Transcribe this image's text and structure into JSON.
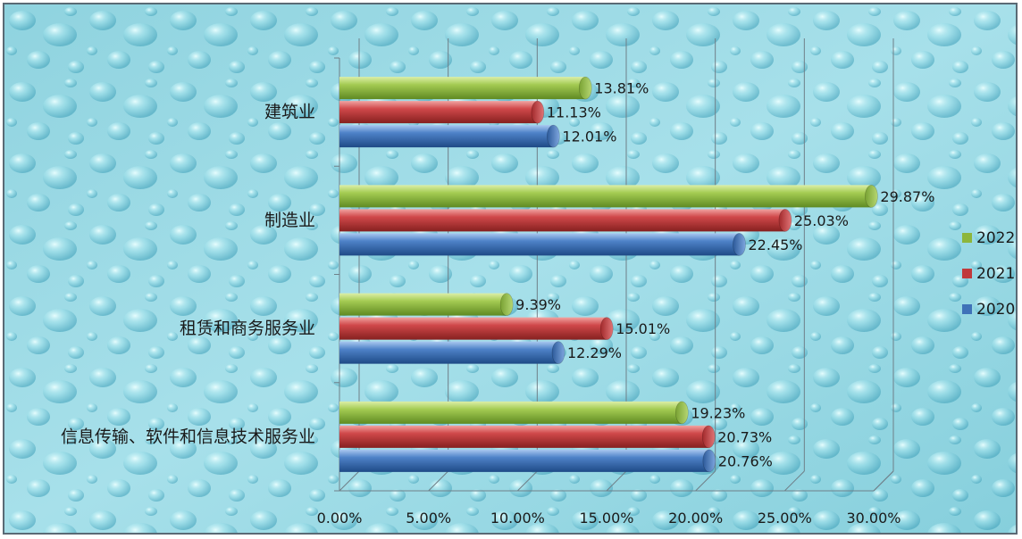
{
  "chart_data": {
    "type": "bar",
    "orientation": "horizontal",
    "categories": [
      "建筑业",
      "制造业",
      "租赁和商务服务业",
      "信息传输、软件和信息技术服务业"
    ],
    "series": [
      {
        "name": "2022",
        "values": [
          13.81,
          29.87,
          9.39,
          19.23
        ],
        "labels": [
          "13.81%",
          "29.87%",
          "9.39%",
          "19.23%"
        ]
      },
      {
        "name": "2021",
        "values": [
          11.13,
          25.03,
          15.01,
          20.73
        ],
        "labels": [
          "11.13%",
          "25.03%",
          "15.01%",
          "20.73%"
        ]
      },
      {
        "name": "2020",
        "values": [
          12.01,
          22.45,
          12.29,
          20.76
        ],
        "labels": [
          "12.01%",
          "22.45%",
          "12.29%",
          "20.76%"
        ]
      }
    ],
    "xlim": [
      0,
      30
    ],
    "x_ticks": [
      "0.00%",
      "5.00%",
      "10.00%",
      "15.00%",
      "20.00%",
      "25.00%",
      "30.00%"
    ],
    "legend_position": "right",
    "grid": true,
    "colors": {
      "2022": "#8db63c",
      "2021": "#c0393b",
      "2020": "#3f72b8"
    },
    "background": "water-droplet texture (light blue)",
    "title": "",
    "xlabel": "",
    "ylabel": ""
  }
}
